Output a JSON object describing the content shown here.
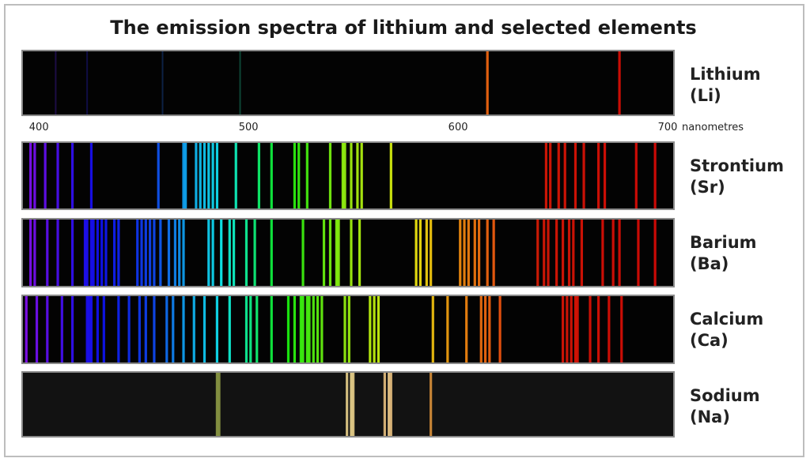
{
  "title": "The emission spectra of lithium and selected elements",
  "axis": {
    "xlim": [
      392,
      703
    ],
    "ticks": [
      400,
      500,
      600,
      700
    ],
    "unit": "nanometres"
  },
  "spectra": [
    {
      "name": "Lithium",
      "symbol": "(Li)",
      "lines": [
        614,
        677
      ],
      "faint_lines": [
        408,
        423,
        459,
        496
      ]
    },
    {
      "name": "Strontium",
      "symbol": "(Sr)",
      "lines": [
        396,
        398,
        403,
        409,
        416,
        425,
        457,
        469,
        470,
        475,
        477,
        479,
        481,
        483,
        485,
        494,
        505,
        511,
        522,
        524,
        528,
        539,
        545,
        546,
        549,
        552,
        554,
        568,
        642,
        644,
        648,
        651,
        656,
        660,
        667,
        670,
        685,
        694
      ]
    },
    {
      "name": "Barium",
      "symbol": "(Ba)",
      "lines": [
        396,
        398,
        404,
        409,
        416,
        422,
        423,
        425,
        426,
        428,
        430,
        432,
        436,
        438,
        447,
        449,
        451,
        453,
        455,
        458,
        462,
        465,
        467,
        469,
        481,
        483,
        487,
        491,
        493,
        499,
        503,
        511,
        526,
        536,
        539,
        542,
        543,
        549,
        553,
        580,
        582,
        585,
        587,
        601,
        603,
        605,
        608,
        610,
        614,
        617,
        638,
        641,
        643,
        647,
        650,
        653,
        655,
        659,
        669,
        674,
        677,
        686,
        694
      ]
    },
    {
      "name": "Calcium",
      "symbol": "(Ca)",
      "lines": [
        394,
        399,
        404,
        411,
        416,
        423,
        424,
        425,
        428,
        431,
        438,
        443,
        448,
        451,
        455,
        461,
        464,
        469,
        474,
        479,
        485,
        491,
        499,
        501,
        504,
        511,
        519,
        522,
        525,
        526,
        528,
        529,
        531,
        533,
        535,
        546,
        548,
        558,
        560,
        562,
        588,
        595,
        604,
        611,
        613,
        615,
        620,
        650,
        652,
        654,
        656,
        657,
        663,
        667,
        672,
        678
      ]
    },
    {
      "name": "Sodium",
      "symbol": "(Na)",
      "lines": [
        485,
        486,
        547,
        549,
        550,
        565,
        567,
        568,
        587
      ],
      "line_colors": [
        "#8d9a45",
        "#8d9a45",
        "#e8cf8a",
        "#f0d890",
        "#e8cf8a",
        "#e8c080",
        "#f0cc8c",
        "#e8c080",
        "#d8903a"
      ],
      "background": "#121212"
    }
  ]
}
